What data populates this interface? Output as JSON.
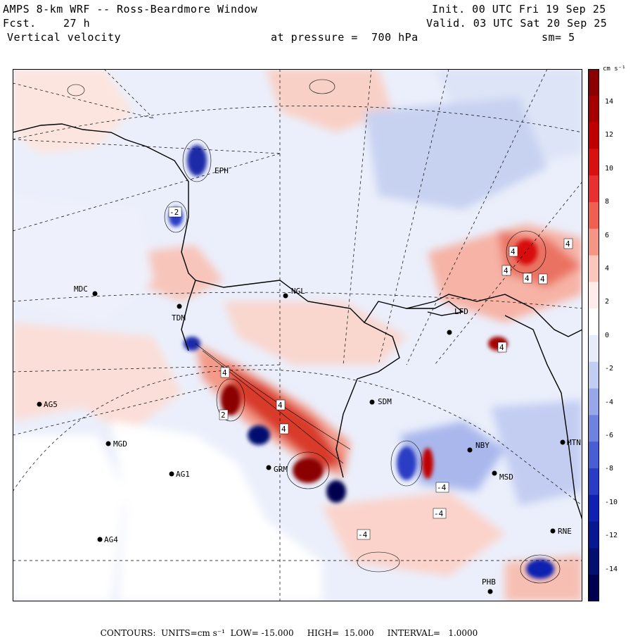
{
  "header": {
    "title": "AMPS 8-km WRF -- Ross-Beardmore Window",
    "forecast_label": "Fcst.",
    "forecast_value": "27 h",
    "field": "Vertical velocity",
    "init": "Init. 00 UTC Fri 19 Sep 25",
    "valid": "Valid. 03 UTC Sat 20 Sep 25",
    "pressure": "at pressure =  700 hPa",
    "smoothing": "sm= 5"
  },
  "colorbar": {
    "unit": "cm s⁻¹",
    "ticks": [
      "14",
      "12",
      "10",
      "8",
      "6",
      "4",
      "2",
      "0",
      "-2",
      "-4",
      "-6",
      "-8",
      "-10",
      "-12",
      "-14"
    ],
    "colors": [
      "#8b0000",
      "#a50000",
      "#c00000",
      "#d81010",
      "#e83030",
      "#f06050",
      "#f59585",
      "#fbc7bc",
      "#ffecea",
      "#ffffff",
      "#e6ecfa",
      "#c2cdf2",
      "#97a7ea",
      "#6f82e0",
      "#4a5ed4",
      "#2a3cc4",
      "#1020b0",
      "#081890",
      "#041070",
      "#000050"
    ]
  },
  "stations": [
    {
      "name": "MDC"
    },
    {
      "name": "TDM"
    },
    {
      "name": "NGL"
    },
    {
      "name": "SDM"
    },
    {
      "name": "AG5"
    },
    {
      "name": "MGD"
    },
    {
      "name": "AG1"
    },
    {
      "name": "AG4"
    },
    {
      "name": "GRM"
    },
    {
      "name": "NBY"
    },
    {
      "name": "MTN"
    },
    {
      "name": "MSD"
    },
    {
      "name": "RNE"
    },
    {
      "name": "PHB"
    },
    {
      "name": "LFD"
    },
    {
      "name": "EPH"
    }
  ],
  "contour_labels": [
    "4",
    "4",
    "4",
    "4",
    "4",
    "4",
    "4",
    "4",
    "4",
    "-4",
    "-4",
    "-4",
    "-2",
    "2"
  ],
  "footer": {
    "contours_label": "CONTOURS:",
    "units": "UNITS=cm s⁻¹",
    "low": "LOW= -15.000",
    "high": "HIGH=  15.000",
    "interval": "INTERVAL=   1.0000"
  }
}
